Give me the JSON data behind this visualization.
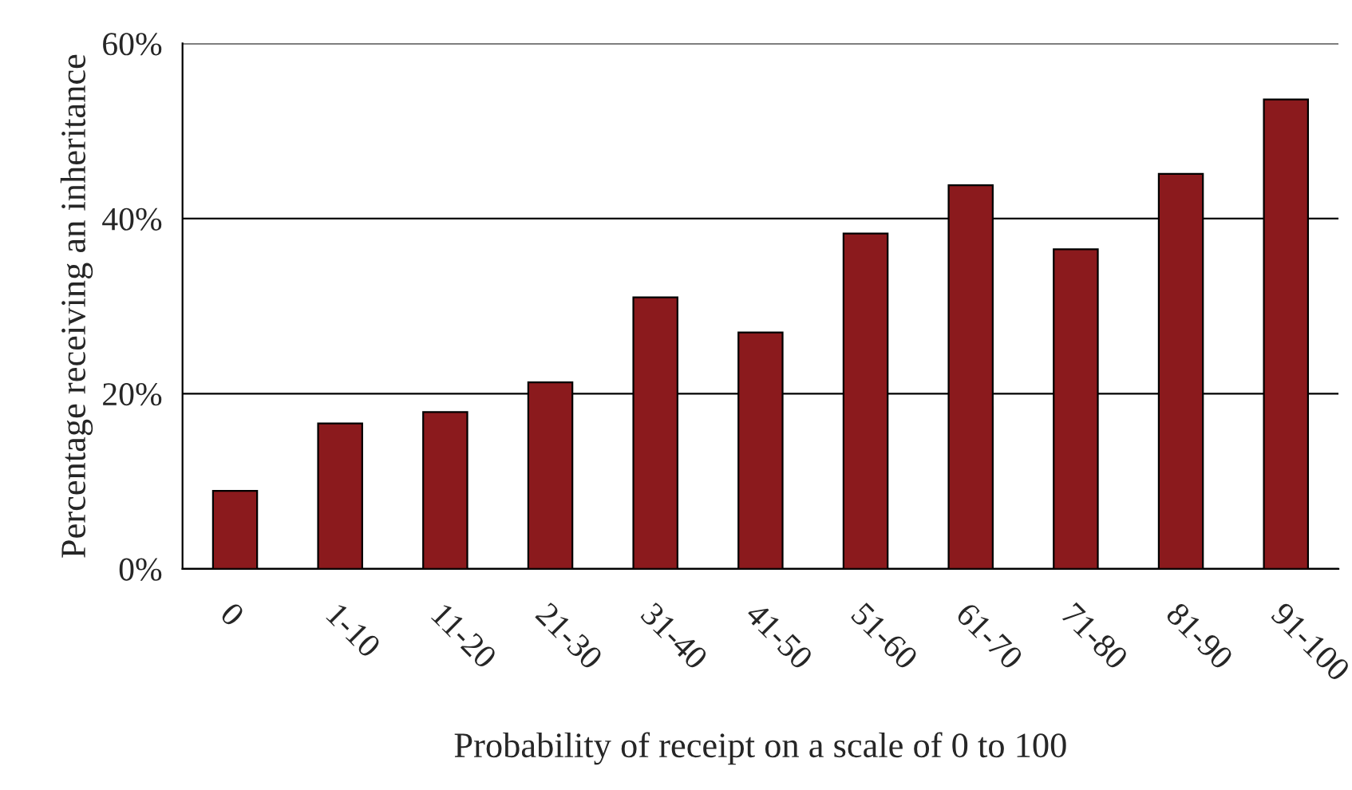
{
  "chart_data": {
    "type": "bar",
    "xlabel": "Probability of receipt on a scale of 0 to 100",
    "ylabel": "Percentage receiving an inheritance",
    "categories": [
      "0",
      "1-10",
      "11-20",
      "21-30",
      "31-40",
      "41-50",
      "51-60",
      "61-70",
      "71-80",
      "81-90",
      "91-100"
    ],
    "values": [
      8.9,
      16.6,
      17.9,
      21.3,
      31.0,
      27.0,
      38.3,
      43.8,
      36.5,
      45.1,
      53.6
    ],
    "color": "#8b1a1d",
    "ylim": [
      0,
      60
    ],
    "yticks": [
      {
        "value": 0,
        "label": "0%"
      },
      {
        "value": 20,
        "label": "20%"
      },
      {
        "value": 40,
        "label": "40%"
      },
      {
        "value": 60,
        "label": "60%"
      }
    ],
    "grid": "y",
    "legend": false
  }
}
